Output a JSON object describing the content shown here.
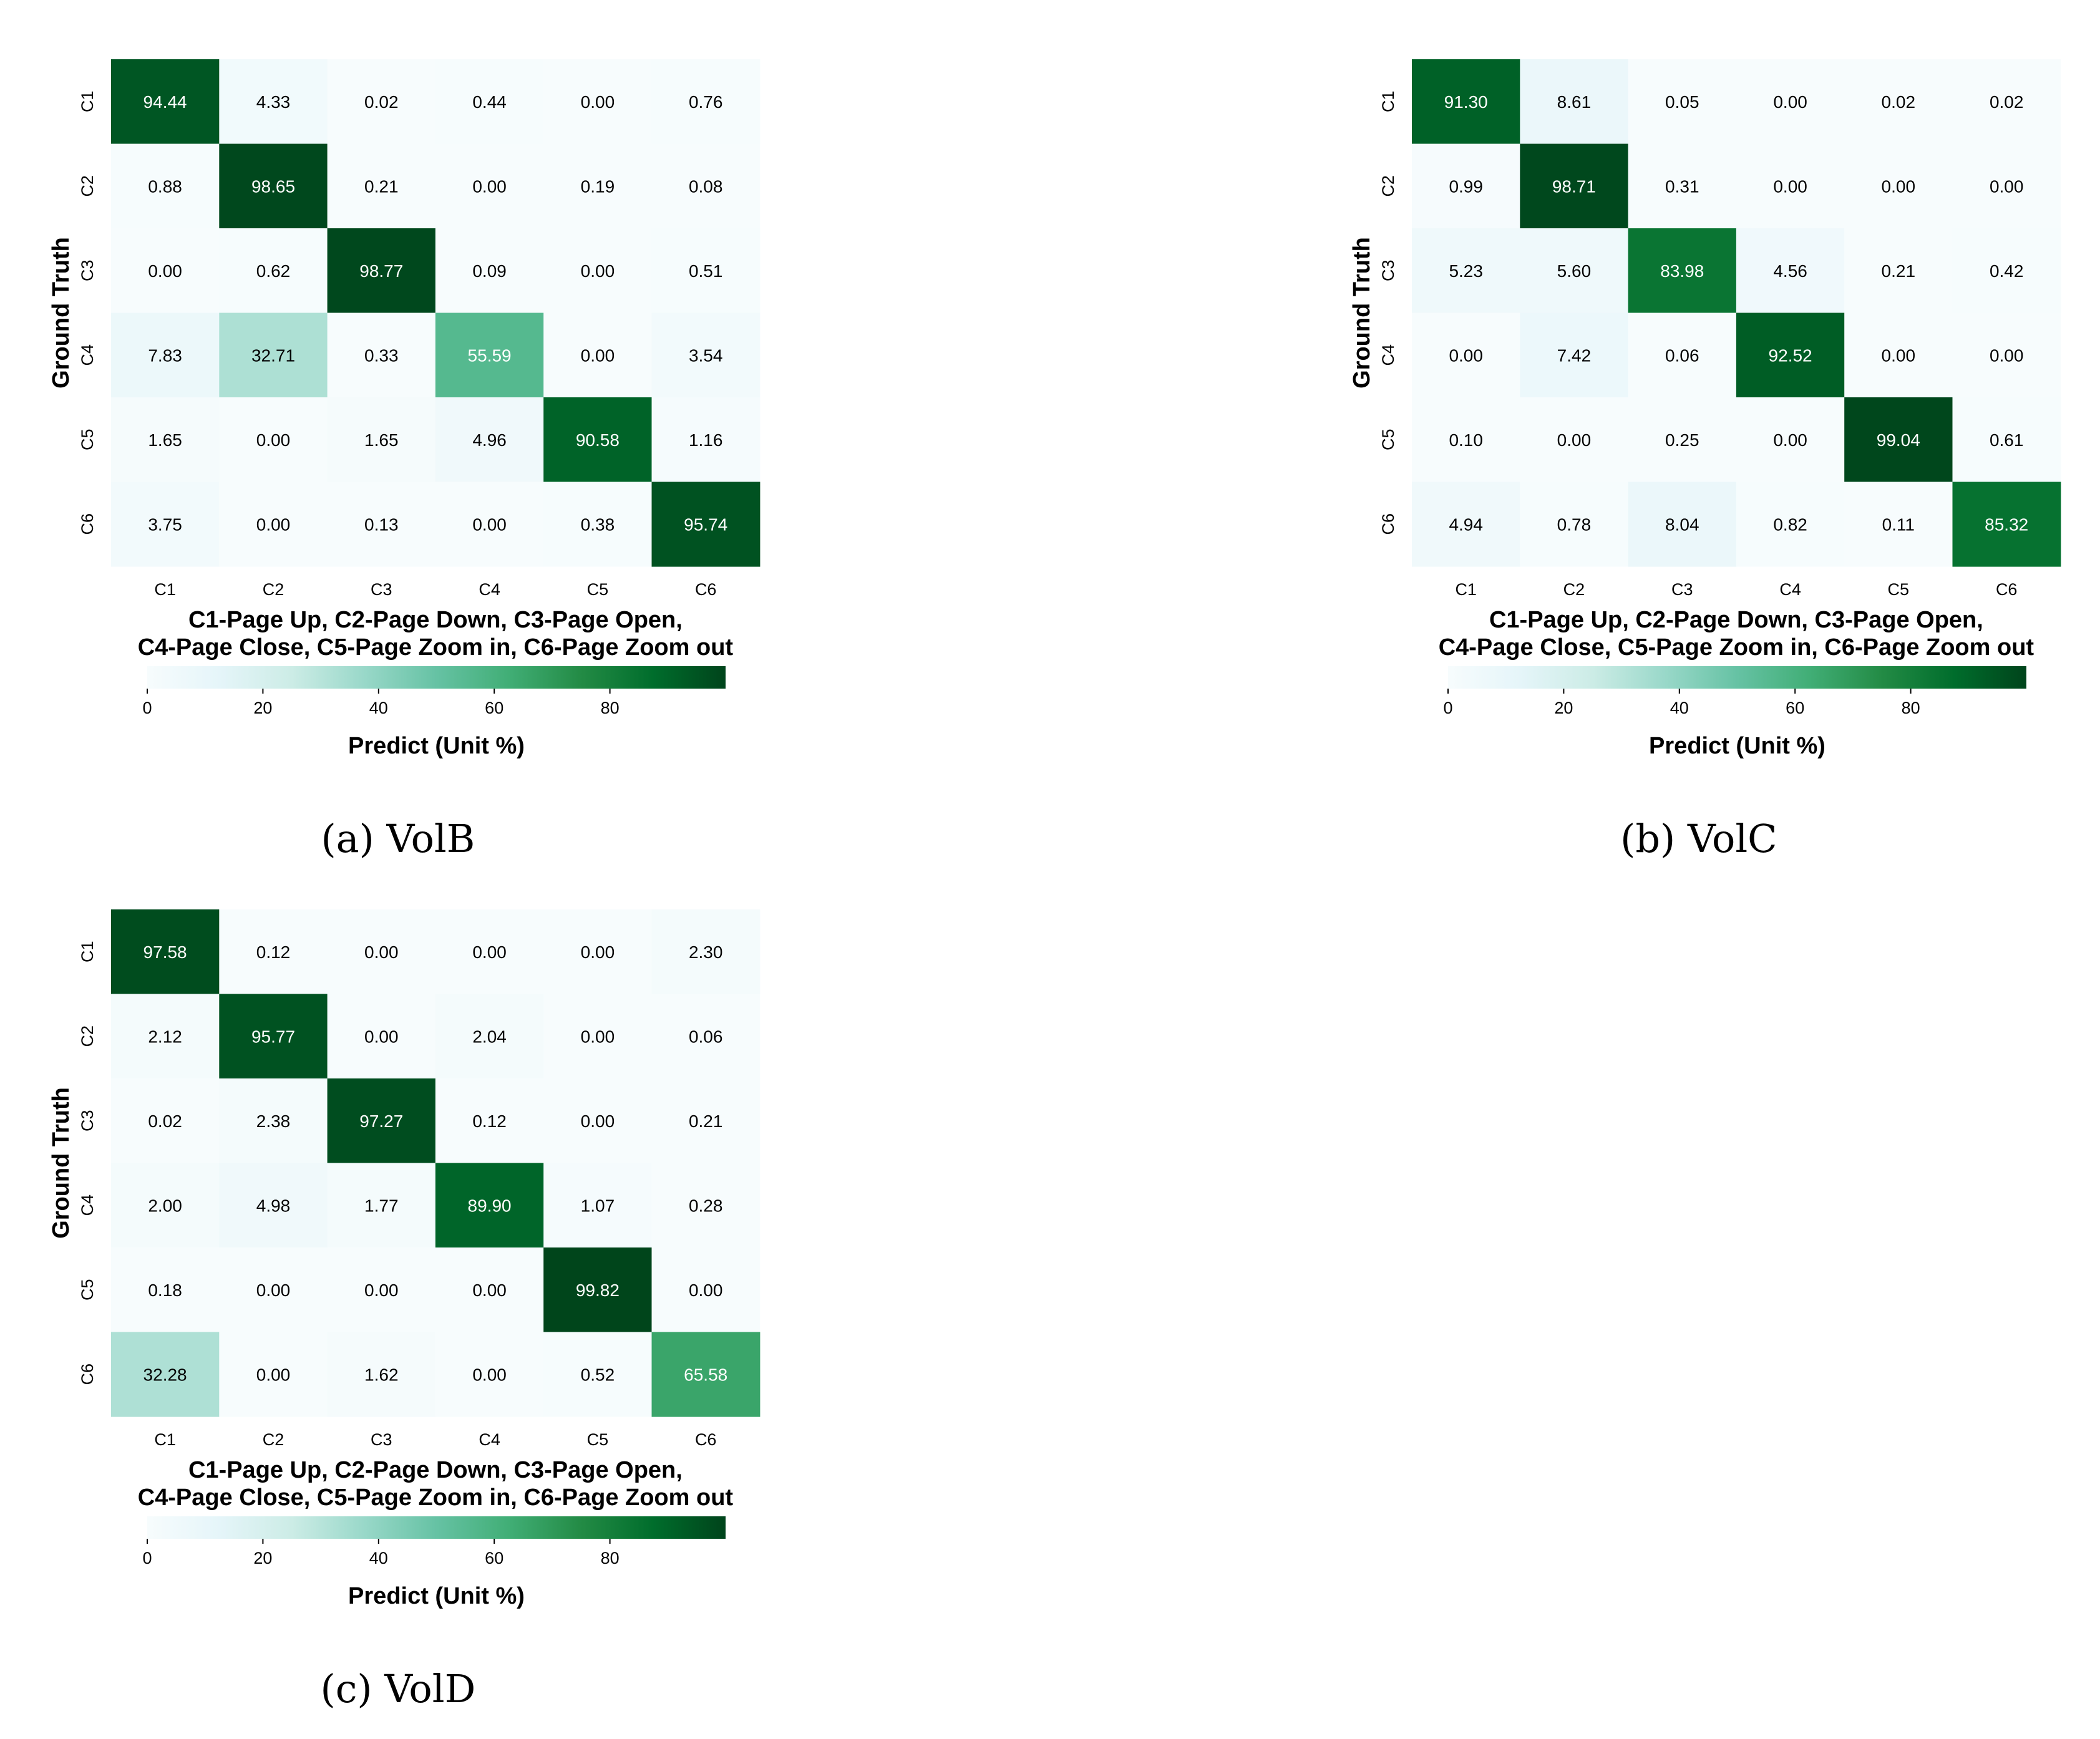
{
  "figure": {
    "colormap": [
      "#f7fcfd",
      "#e5f5f9",
      "#ccece6",
      "#99d8c9",
      "#66c2a4",
      "#41ae76",
      "#238b45",
      "#006d2c",
      "#00441b"
    ],
    "text_light": "#ffffff",
    "text_dark": "#000000"
  },
  "chart_data": [
    {
      "type": "heatmap",
      "caption": "(a)  VolB",
      "ylabel": "Ground Truth",
      "xlabel_lines": [
        "C1-Page Up, C2-Page Down, C3-Page Open,",
        "C4-Page Close, C5-Page Zoom in, C6-Page Zoom out"
      ],
      "row_labels": [
        "C1",
        "C2",
        "C3",
        "C4",
        "C5",
        "C6"
      ],
      "col_labels": [
        "C1",
        "C2",
        "C3",
        "C4",
        "C5",
        "C6"
      ],
      "colorbar": {
        "label": "Predict (Unit %)",
        "range": [
          0,
          100
        ],
        "ticks": [
          "0",
          "20",
          "40",
          "60",
          "80"
        ]
      },
      "values": [
        [
          "94.44",
          "4.33",
          "0.02",
          "0.44",
          "0.00",
          "0.76"
        ],
        [
          "0.88",
          "98.65",
          "0.21",
          "0.00",
          "0.19",
          "0.08"
        ],
        [
          "0.00",
          "0.62",
          "98.77",
          "0.09",
          "0.00",
          "0.51"
        ],
        [
          "7.83",
          "32.71",
          "0.33",
          "55.59",
          "0.00",
          "3.54"
        ],
        [
          "1.65",
          "0.00",
          "1.65",
          "4.96",
          "90.58",
          "1.16"
        ],
        [
          "3.75",
          "0.00",
          "0.13",
          "0.00",
          "0.38",
          "95.74"
        ]
      ]
    },
    {
      "type": "heatmap",
      "caption": "(b)  VolC",
      "ylabel": "Ground Truth",
      "xlabel_lines": [
        "C1-Page Up, C2-Page Down, C3-Page Open,",
        "C4-Page Close, C5-Page Zoom in, C6-Page Zoom out"
      ],
      "row_labels": [
        "C1",
        "C2",
        "C3",
        "C4",
        "C5",
        "C6"
      ],
      "col_labels": [
        "C1",
        "C2",
        "C3",
        "C4",
        "C5",
        "C6"
      ],
      "colorbar": {
        "label": "Predict (Unit %)",
        "range": [
          0,
          100
        ],
        "ticks": [
          "0",
          "20",
          "40",
          "60",
          "80"
        ]
      },
      "values": [
        [
          "91.30",
          "8.61",
          "0.05",
          "0.00",
          "0.02",
          "0.02"
        ],
        [
          "0.99",
          "98.71",
          "0.31",
          "0.00",
          "0.00",
          "0.00"
        ],
        [
          "5.23",
          "5.60",
          "83.98",
          "4.56",
          "0.21",
          "0.42"
        ],
        [
          "0.00",
          "7.42",
          "0.06",
          "92.52",
          "0.00",
          "0.00"
        ],
        [
          "0.10",
          "0.00",
          "0.25",
          "0.00",
          "99.04",
          "0.61"
        ],
        [
          "4.94",
          "0.78",
          "8.04",
          "0.82",
          "0.11",
          "85.32"
        ]
      ]
    },
    {
      "type": "heatmap",
      "caption": "(c)  VolD",
      "ylabel": "Ground Truth",
      "xlabel_lines": [
        "C1-Page Up, C2-Page Down, C3-Page Open,",
        "C4-Page Close, C5-Page Zoom in, C6-Page Zoom out"
      ],
      "row_labels": [
        "C1",
        "C2",
        "C3",
        "C4",
        "C5",
        "C6"
      ],
      "col_labels": [
        "C1",
        "C2",
        "C3",
        "C4",
        "C5",
        "C6"
      ],
      "colorbar": {
        "label": "Predict (Unit %)",
        "range": [
          0,
          100
        ],
        "ticks": [
          "0",
          "20",
          "40",
          "60",
          "80"
        ]
      },
      "values": [
        [
          "97.58",
          "0.12",
          "0.00",
          "0.00",
          "0.00",
          "2.30"
        ],
        [
          "2.12",
          "95.77",
          "0.00",
          "2.04",
          "0.00",
          "0.06"
        ],
        [
          "0.02",
          "2.38",
          "97.27",
          "0.12",
          "0.00",
          "0.21"
        ],
        [
          "2.00",
          "4.98",
          "1.77",
          "89.90",
          "1.07",
          "0.28"
        ],
        [
          "0.18",
          "0.00",
          "0.00",
          "0.00",
          "99.82",
          "0.00"
        ],
        [
          "32.28",
          "0.00",
          "1.62",
          "0.00",
          "0.52",
          "65.58"
        ]
      ]
    }
  ]
}
